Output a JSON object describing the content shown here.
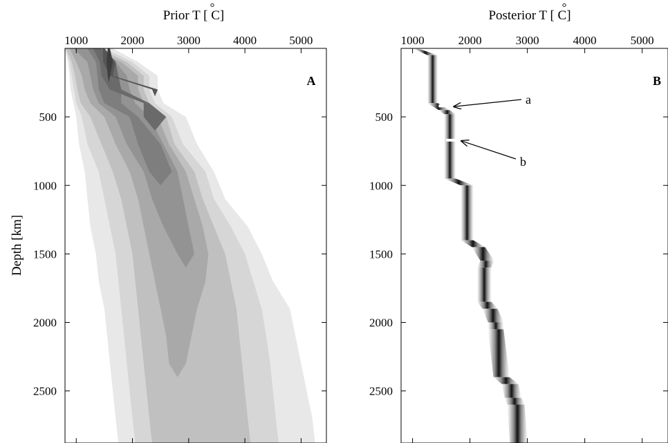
{
  "chart_data": [
    {
      "type": "heatmap",
      "panel_label": "A",
      "x_axis_title": "Prior T [ C]",
      "x_axis_degree_symbol": "°",
      "y_axis_title": "Depth [km]",
      "xlim": [
        800,
        5450
      ],
      "ylim": [
        2880,
        0
      ],
      "x_ticks": [
        1000,
        2000,
        3000,
        4000,
        5000
      ],
      "y_ticks": [
        500,
        1000,
        1500,
        2000,
        2500
      ],
      "x_tick_labels": [
        "1000",
        "2000",
        "3000",
        "4000",
        "5000"
      ],
      "y_tick_labels": [
        "500",
        "1000",
        "1500",
        "2000",
        "2500"
      ],
      "x_axis_position": "top",
      "grid": false,
      "colormap": "grayscale",
      "depth_nodes_km": [
        0,
        100,
        200,
        300,
        400,
        500,
        700,
        900,
        1100,
        1300,
        1500,
        1700,
        1900,
        2100,
        2300,
        2500,
        2700,
        2880
      ],
      "contours": [
        {
          "level": 1,
          "gray": "#e8e8e8",
          "left": [
            800,
            850,
            880,
            900,
            950,
            1000,
            1050,
            1150,
            1200,
            1250,
            1350,
            1400,
            1500,
            1550,
            1600,
            1650,
            1700,
            1750
          ],
          "right": [
            1650,
            2100,
            2450,
            2450,
            2550,
            2950,
            3150,
            3450,
            3650,
            4050,
            4300,
            4500,
            4800,
            4900,
            5000,
            5100,
            5200,
            5250
          ]
        },
        {
          "level": 2,
          "gray": "#d6d6d6",
          "left": [
            800,
            880,
            920,
            960,
            1000,
            1100,
            1200,
            1400,
            1500,
            1600,
            1700,
            1750,
            1800,
            1850,
            1900,
            1950,
            2000,
            2050
          ],
          "right": [
            1500,
            2000,
            2300,
            2300,
            2400,
            2700,
            2900,
            3300,
            3450,
            3750,
            4000,
            4150,
            4300,
            4380,
            4450,
            4500,
            4550,
            4600
          ]
        },
        {
          "level": 3,
          "gray": "#c0c0c0",
          "left": [
            820,
            920,
            980,
            1020,
            1080,
            1250,
            1450,
            1650,
            1800,
            1900,
            2000,
            2050,
            2100,
            2150,
            2200,
            2250,
            2300,
            2350
          ],
          "right": [
            1400,
            1900,
            2200,
            2200,
            2300,
            2600,
            2750,
            3100,
            3250,
            3450,
            3650,
            3750,
            3850,
            3900,
            3950,
            4000,
            4050,
            4100
          ]
        },
        {
          "level": 4,
          "gray": "#a9a9a9",
          "left": [
            880,
            1000,
            1100,
            1150,
            1250,
            1500,
            1700,
            1950,
            2100,
            2200,
            2300,
            2400,
            2500,
            2600,
            2650
          ],
          "right": [
            1300,
            1800,
            2100,
            2100,
            2200,
            2450,
            2650,
            2950,
            3100,
            3250,
            3350,
            3300,
            3150,
            3050,
            2950
          ]
        },
        {
          "level": 5,
          "gray": "#939393",
          "left": [
            950,
            1200,
            1250,
            1300,
            1400,
            1700,
            1900,
            2200,
            2350,
            2550,
            2800
          ],
          "right": [
            1250,
            1700,
            1900,
            1950,
            2050,
            2300,
            2550,
            2800,
            2900,
            3000,
            3100
          ]
        },
        {
          "level": 6,
          "gray": "#7e7e7e",
          "left": [
            1200,
            1350,
            1380,
            1400,
            1500,
            1950,
            2100,
            2300
          ],
          "right": [
            1400,
            1550,
            1700,
            1800,
            1800,
            2100,
            2500,
            2700
          ]
        },
        {
          "level": 7,
          "gray": "#6a6a6a",
          "left": [
            1300,
            1420,
            1450,
            1600,
            2200,
            2200
          ],
          "right": [
            1450,
            1700,
            1750,
            1800,
            2300,
            2600
          ]
        },
        {
          "level": 8,
          "gray": "#555555",
          "left": [
            1470,
            1480,
            1600,
            2350
          ],
          "right": [
            1500,
            1700,
            1650,
            2450
          ]
        },
        {
          "level": 9,
          "gray": "#3e3e3e",
          "left": [
            1560,
            1540,
            1560
          ],
          "right": [
            1600,
            1650,
            1600
          ]
        }
      ]
    },
    {
      "type": "heatmap",
      "panel_label": "B",
      "x_axis_title": "Posterior T [ C]",
      "x_axis_degree_symbol": "°",
      "xlim": [
        800,
        5450
      ],
      "ylim": [
        2880,
        0
      ],
      "x_ticks": [
        1000,
        2000,
        3000,
        4000,
        5000
      ],
      "y_ticks": [
        500,
        1000,
        1500,
        2000,
        2500
      ],
      "x_tick_labels": [
        "1000",
        "2000",
        "3000",
        "4000",
        "5000"
      ],
      "y_tick_labels": [
        "500",
        "1000",
        "1500",
        "2000",
        "2500"
      ],
      "x_axis_position": "top",
      "grid": false,
      "colormap": "grayscale",
      "profile": {
        "depth_km": [
          0,
          50,
          400,
          450,
          480,
          950,
          1000,
          1400,
          1450,
          1550,
          1600,
          1850,
          1900,
          2000,
          2050,
          2400,
          2450,
          2550,
          2600,
          2880
        ],
        "temperature_c": [
          1050,
          1350,
          1350,
          1550,
          1650,
          1650,
          1950,
          1950,
          2150,
          2300,
          2250,
          2250,
          2350,
          2450,
          2450,
          2550,
          2700,
          2750,
          2800,
          2850
        ],
        "half_width_c": [
          40,
          90,
          90,
          95,
          100,
          100,
          110,
          110,
          115,
          120,
          120,
          125,
          130,
          135,
          135,
          140,
          145,
          145,
          150,
          155
        ]
      },
      "annotations": [
        {
          "label": "a",
          "depth_km": 420,
          "temperature_c": 1550
        },
        {
          "label": "b",
          "depth_km": 670,
          "temperature_c": 1680
        }
      ]
    }
  ]
}
